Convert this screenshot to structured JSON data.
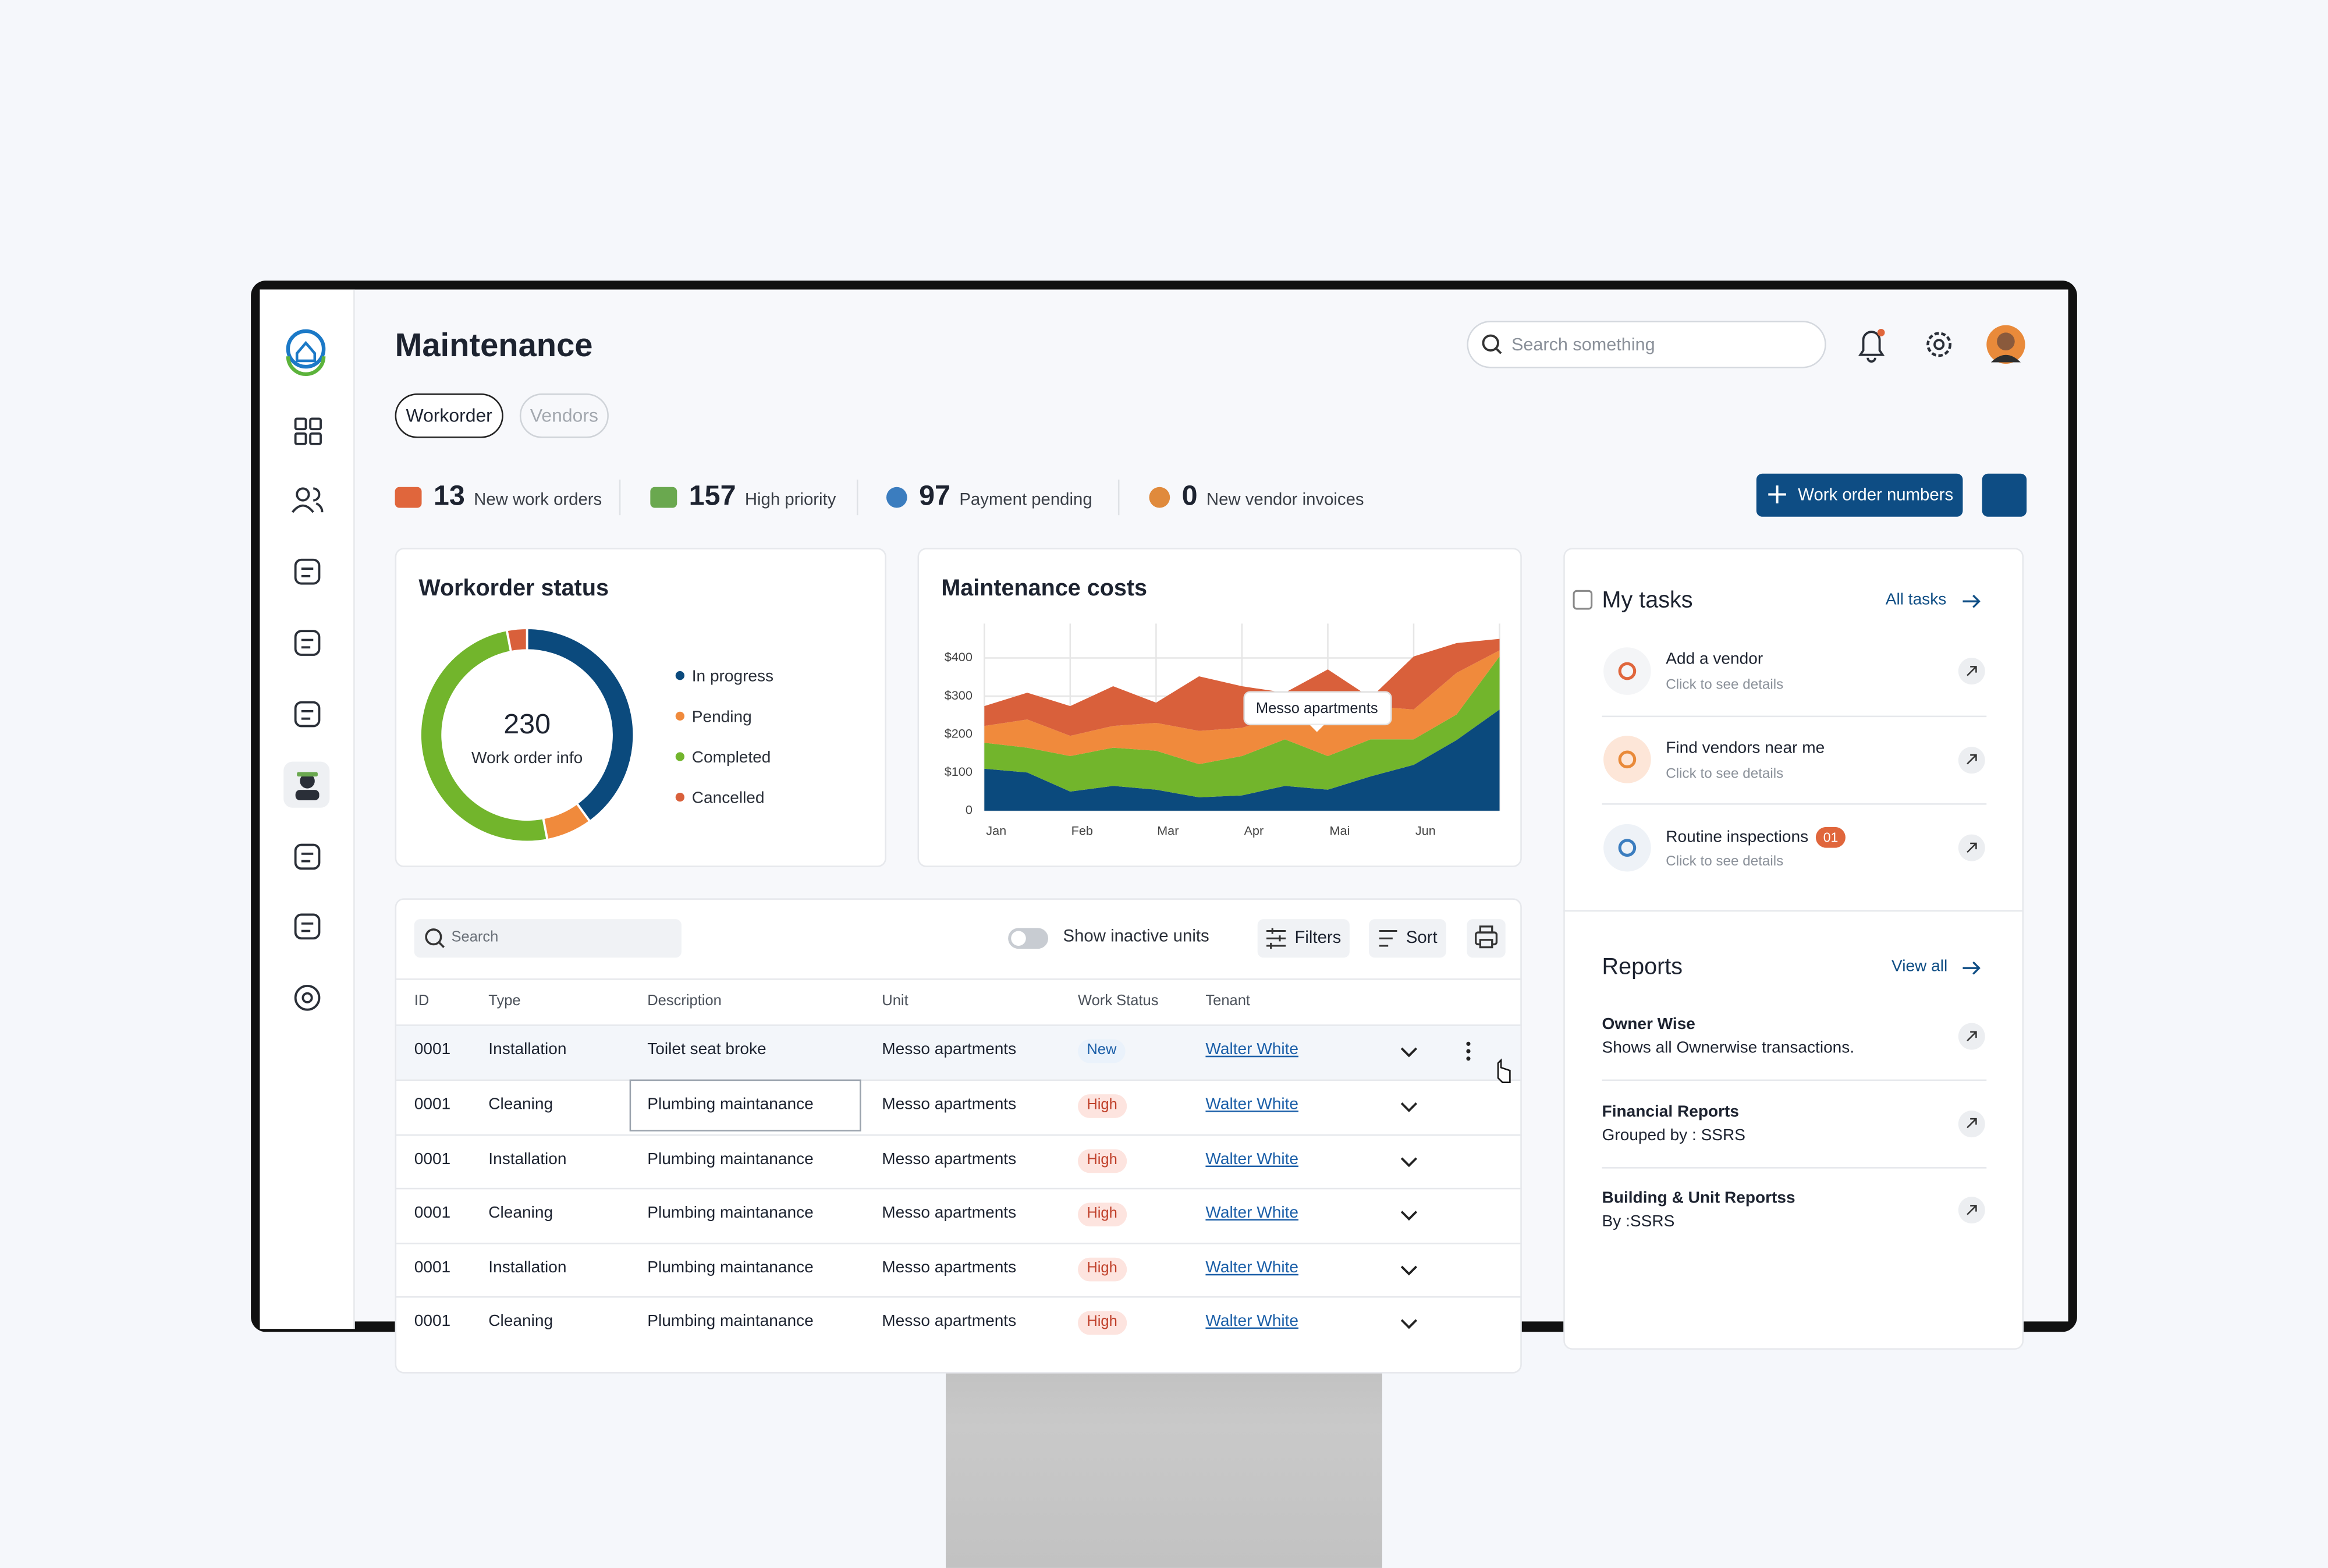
{
  "header": {
    "title": "Maintenance",
    "search_placeholder": "Search something"
  },
  "tabs": [
    "Workorder",
    "Vendors"
  ],
  "stats": [
    {
      "value": 13,
      "label": "New work orders"
    },
    {
      "value": 157,
      "label": "High priority"
    },
    {
      "value": 97,
      "label": "Payment pending"
    },
    {
      "value": 0,
      "label": "New vendor invoices"
    }
  ],
  "primary_button": "Work order numbers",
  "chart_data": [
    {
      "type": "donut",
      "title": "Workorder status",
      "center_value": 230,
      "center_label": "Work order  info",
      "categories": [
        "In progress",
        "Pending",
        "Completed",
        "Cancelled"
      ],
      "values": [
        92,
        16,
        115,
        7
      ],
      "colors": [
        "#0b4a7d",
        "#f08a3c",
        "#72b52c",
        "#d9603b"
      ]
    },
    {
      "type": "area",
      "title": "Maintenance costs",
      "stacked": true,
      "grid": true,
      "categories": [
        "Jan",
        null,
        "Feb",
        null,
        "Mar",
        null,
        "Apr",
        null,
        "Mai",
        null,
        "Jun",
        null,
        null
      ],
      "series": [
        {
          "color": "#0b4a7d",
          "values": [
            110,
            100,
            50,
            65,
            55,
            35,
            40,
            65,
            55,
            90,
            120,
            185,
            265
          ]
        },
        {
          "color": "#72b52c",
          "values": [
            68,
            65,
            93,
            100,
            102,
            87,
            103,
            122,
            88,
            97,
            67,
            67,
            139
          ]
        },
        {
          "color": "#f08a3c",
          "values": [
            44,
            74,
            53,
            57,
            73,
            87,
            74,
            65,
            96,
            87,
            78,
            109,
            16
          ]
        },
        {
          "color": "#d9603b",
          "values": [
            52,
            70,
            78,
            104,
            53,
            143,
            109,
            57,
            131,
            22,
            139,
            78,
            30
          ]
        }
      ],
      "ylim": [
        0,
        490
      ],
      "yticks": [
        0,
        {
          "value": 100,
          "label": "$100"
        },
        {
          "value": 200,
          "label": "$200"
        },
        {
          "value": 300,
          "label": "$300"
        },
        {
          "value": 400,
          "label": "$400"
        }
      ],
      "annotation": "Messo apartments"
    }
  ],
  "tasks": {
    "title": "My tasks",
    "link": "All tasks",
    "items": [
      {
        "title": "Add a vendor",
        "subtitle": "Click to see details"
      },
      {
        "title": "Find vendors near me",
        "subtitle": "Click to see details"
      },
      {
        "title": "Routine inspections",
        "subtitle": "Click to see details",
        "badge": "01"
      }
    ]
  },
  "reports": {
    "title": "Reports",
    "link": "View all",
    "items": [
      {
        "title": "Owner Wise",
        "subtitle": "Shows all Ownerwise transactions."
      },
      {
        "title": "Financial Reports",
        "subtitle": "Grouped by : SSRS"
      },
      {
        "title": "Building & Unit Reportss",
        "subtitle": "By :SSRS"
      }
    ]
  },
  "table": {
    "search_placeholder": "Search",
    "toggle": "Show inactive units",
    "filters": "Filters",
    "sort": "Sort",
    "columns": [
      "ID",
      "Type",
      "Description",
      "Unit",
      "Work Status",
      "Tenant"
    ],
    "rows": [
      [
        "0001",
        "Installation",
        "Toilet seat broke",
        "Messo apartments",
        "New",
        "Walter White"
      ],
      [
        "0001",
        "Cleaning",
        "Plumbing maintanance",
        "Messo apartments",
        "High",
        "Walter White"
      ],
      [
        "0001",
        "Installation",
        "Plumbing maintanance",
        "Messo apartments",
        "High",
        "Walter White"
      ],
      [
        "0001",
        "Cleaning",
        "Plumbing maintanance",
        "Messo apartments",
        "High",
        "Walter White"
      ],
      [
        "0001",
        "Installation",
        "Plumbing maintanance",
        "Messo apartments",
        "High",
        "Walter White"
      ],
      [
        "0001",
        "Cleaning",
        "Plumbing maintanance",
        "Messo apartments",
        "High",
        "Walter White"
      ]
    ]
  }
}
